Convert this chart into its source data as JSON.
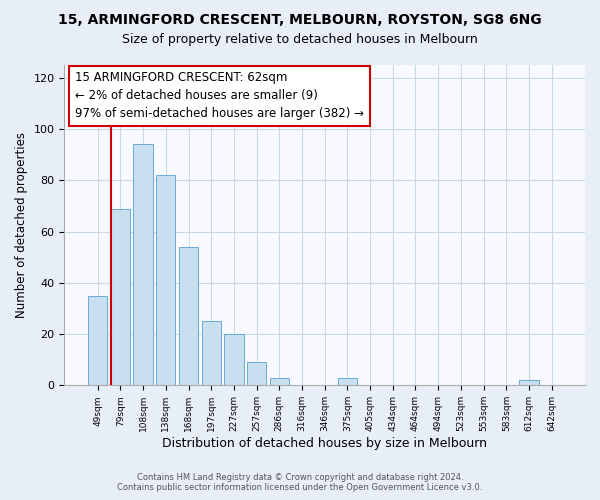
{
  "title": "15, ARMINGFORD CRESCENT, MELBOURN, ROYSTON, SG8 6NG",
  "subtitle": "Size of property relative to detached houses in Melbourn",
  "xlabel": "Distribution of detached houses by size in Melbourn",
  "ylabel": "Number of detached properties",
  "categories": [
    "49sqm",
    "79sqm",
    "108sqm",
    "138sqm",
    "168sqm",
    "197sqm",
    "227sqm",
    "257sqm",
    "286sqm",
    "316sqm",
    "346sqm",
    "375sqm",
    "405sqm",
    "434sqm",
    "464sqm",
    "494sqm",
    "523sqm",
    "553sqm",
    "583sqm",
    "612sqm",
    "642sqm"
  ],
  "values": [
    35,
    69,
    94,
    82,
    54,
    25,
    20,
    9,
    3,
    0,
    0,
    3,
    0,
    0,
    0,
    0,
    0,
    0,
    0,
    2,
    0
  ],
  "bar_color": "#c8dff0",
  "bar_edge_color": "#6aaad4",
  "annotation_title": "15 ARMINGFORD CRESCENT: 62sqm",
  "annotation_line1": "← 2% of detached houses are smaller (9)",
  "annotation_line2": "97% of semi-detached houses are larger (382) →",
  "annotation_box_color": "white",
  "annotation_box_edge_color": "#cc0000",
  "ylim": [
    0,
    125
  ],
  "yticks": [
    0,
    20,
    40,
    60,
    80,
    100,
    120
  ],
  "footer1": "Contains HM Land Registry data © Crown copyright and database right 2024.",
  "footer2": "Contains public sector information licensed under the Open Government Licence v3.0.",
  "bg_color": "#e8eef8",
  "plot_bg_color": "#f8faff",
  "grid_color": "#c8d8e8"
}
